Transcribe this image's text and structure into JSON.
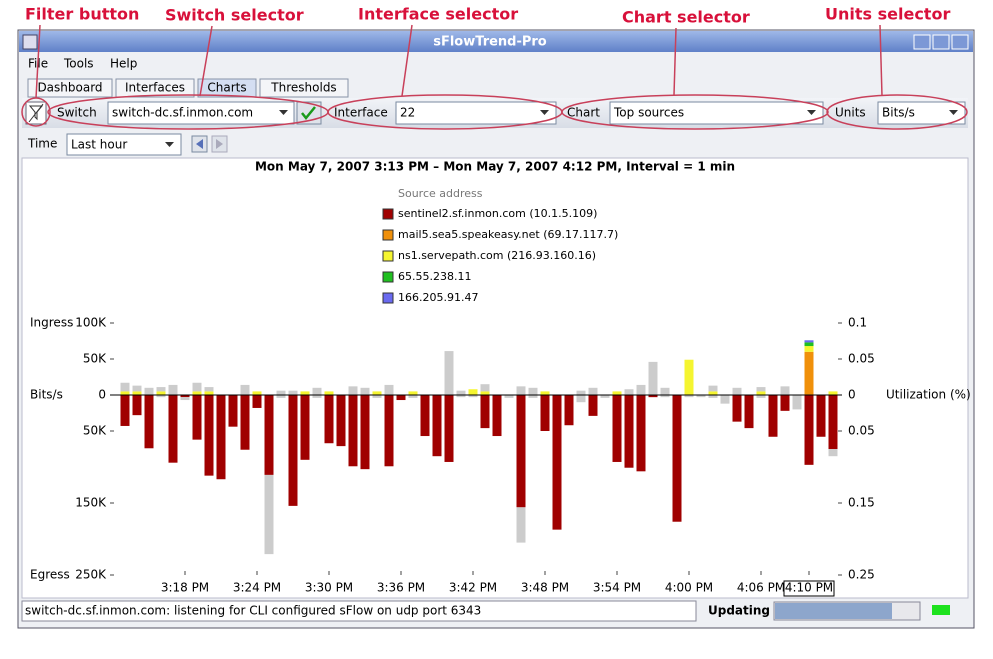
{
  "annotations": [
    "Filter button",
    "Switch selector",
    "Interface selector",
    "Chart selector",
    "Units selector"
  ],
  "window": {
    "title": "sFlowTrend-Pro"
  },
  "menu": [
    "File",
    "Tools",
    "Help"
  ],
  "tabs": [
    "Dashboard",
    "Interfaces",
    "Charts",
    "Thresholds"
  ],
  "toolbar": {
    "switch_label": "Switch",
    "switch_value": "switch-dc.sf.inmon.com",
    "interface_label": "Interface",
    "interface_value": "22",
    "chart_label": "Chart",
    "chart_value": "Top sources",
    "units_label": "Units",
    "units_value": "Bits/s",
    "time_label": "Time",
    "time_value": "Last hour"
  },
  "chart": {
    "type": "bar",
    "title": "Mon May 7, 2007 3:13 PM – Mon May 7, 2007 4:12 PM, Interval = 1 min",
    "legend_title": "Source address",
    "y_label_top": "Ingress",
    "y_label_middle": "Bits/s",
    "y_label_bottom": "Egress",
    "y2_label": "Utilization (%)",
    "ylim": [
      -250000,
      100000
    ],
    "yticks": [
      {
        "value": 100000,
        "label": "100K"
      },
      {
        "value": 50000,
        "label": "50K"
      },
      0,
      {
        "value": -50000,
        "label": "50K"
      },
      {
        "value": -150000,
        "label": "150K"
      },
      {
        "value": -250000,
        "label": "250K"
      }
    ],
    "y2lim": [
      -0.25,
      0.1
    ],
    "y2ticks": [
      0.1,
      0.05,
      0,
      {
        "value": -0.05,
        "label": "0.05"
      },
      {
        "value": -0.15,
        "label": "0.15"
      },
      {
        "value": -0.25,
        "label": "0.25"
      }
    ],
    "categories": [
      null,
      null,
      null,
      null,
      null,
      "3:18 PM",
      null,
      null,
      null,
      null,
      null,
      "3:24 PM",
      null,
      null,
      null,
      null,
      null,
      "3:30 PM",
      null,
      null,
      null,
      null,
      null,
      "3:36 PM",
      null,
      null,
      null,
      null,
      null,
      "3:42 PM",
      null,
      null,
      null,
      null,
      null,
      "3:48 PM",
      null,
      null,
      null,
      null,
      null,
      "3:54 PM",
      null,
      null,
      null,
      null,
      null,
      "4:00 PM",
      null,
      null,
      null,
      null,
      null,
      "4:06 PM",
      null,
      null,
      null,
      "4:10 PM",
      null,
      null
    ],
    "series": [
      {
        "name": "sentinel2.sf.inmon.com (10.1.5.109)",
        "color": "#a00000",
        "egress_values": [
          -43000,
          -28000,
          -74000,
          0,
          -94000,
          -3000,
          -62000,
          -112000,
          -117000,
          -44000,
          -76000,
          -18000,
          -111000,
          0,
          -154000,
          -90000,
          0,
          -67000,
          -71000,
          -99000,
          -103000,
          0,
          -99000,
          -7000,
          0,
          -57000,
          -85000,
          -93000,
          0,
          0,
          -46000,
          -57000,
          0,
          -156000,
          0,
          -50000,
          -187000,
          -42000,
          0,
          -29000,
          0,
          -93000,
          -101000,
          -106000,
          -3000,
          0,
          -176000,
          0,
          0,
          0,
          0,
          -37000,
          -46000,
          0,
          -58000,
          -22000,
          0,
          -97000,
          -58000,
          -75000
        ]
      },
      {
        "name": "mail5.sea5.speakeasy.net (69.17.117.7)",
        "color": "#f0900a",
        "values": [
          0,
          0,
          0,
          0,
          0,
          0,
          0,
          0,
          0,
          0,
          0,
          0,
          0,
          0,
          0,
          0,
          0,
          0,
          0,
          0,
          0,
          0,
          0,
          0,
          0,
          0,
          0,
          0,
          0,
          0,
          0,
          0,
          0,
          0,
          0,
          0,
          0,
          0,
          0,
          0,
          0,
          0,
          0,
          0,
          0,
          0,
          0,
          0,
          0,
          0,
          0,
          0,
          0,
          0,
          0,
          0,
          0,
          60000,
          0,
          0
        ]
      },
      {
        "name": "ns1.servepath.com (216.93.160.16)",
        "color": "#f5f530",
        "values": [
          5000,
          5000,
          0,
          5000,
          0,
          0,
          5000,
          5000,
          0,
          0,
          0,
          5000,
          0,
          0,
          0,
          5000,
          0,
          5000,
          0,
          0,
          0,
          5000,
          0,
          0,
          5000,
          0,
          0,
          0,
          0,
          8000,
          5000,
          0,
          0,
          0,
          0,
          5000,
          0,
          0,
          0,
          0,
          0,
          5000,
          0,
          0,
          0,
          0,
          0,
          49000,
          0,
          5000,
          0,
          0,
          0,
          5000,
          0,
          0,
          0,
          8000,
          0,
          5000
        ]
      },
      {
        "name": "65.55.238.11",
        "color": "#20c020",
        "values": [
          0,
          0,
          0,
          0,
          0,
          0,
          0,
          0,
          0,
          0,
          0,
          0,
          0,
          0,
          0,
          0,
          0,
          0,
          0,
          0,
          0,
          0,
          0,
          0,
          0,
          0,
          0,
          0,
          0,
          0,
          0,
          0,
          0,
          0,
          0,
          0,
          0,
          0,
          0,
          0,
          0,
          0,
          0,
          0,
          0,
          0,
          0,
          0,
          0,
          0,
          0,
          0,
          0,
          0,
          0,
          0,
          0,
          5000,
          0,
          0
        ]
      },
      {
        "name": "166.205.91.47",
        "color": "#6a6af0",
        "values": [
          0,
          0,
          0,
          0,
          0,
          0,
          0,
          0,
          0,
          0,
          0,
          0,
          0,
          0,
          0,
          0,
          0,
          0,
          0,
          0,
          0,
          0,
          0,
          0,
          0,
          0,
          0,
          0,
          0,
          0,
          0,
          0,
          0,
          0,
          0,
          0,
          0,
          0,
          0,
          0,
          0,
          0,
          0,
          0,
          0,
          0,
          0,
          0,
          0,
          0,
          0,
          0,
          0,
          0,
          0,
          0,
          0,
          3000,
          0,
          0
        ]
      },
      {
        "color": "#cccccc",
        "values": [
          12000,
          8000,
          10000,
          6000,
          14000,
          0,
          12000,
          6000,
          0,
          0,
          14000,
          0,
          0,
          6000,
          6000,
          0,
          10000,
          0,
          0,
          12000,
          10000,
          0,
          14000,
          0,
          0,
          0,
          0,
          61000,
          6000,
          0,
          10000,
          0,
          0,
          12000,
          10000,
          0,
          0,
          0,
          6000,
          10000,
          0,
          0,
          8000,
          14000,
          46000,
          10000,
          0,
          0,
          0,
          8000,
          0,
          10000,
          0,
          6000,
          0,
          12000,
          0,
          0,
          0,
          0
        ],
        "egress_values": [
          0,
          0,
          0,
          -3000,
          0,
          -4000,
          0,
          0,
          0,
          0,
          0,
          0,
          -110000,
          -4000,
          0,
          0,
          -4000,
          0,
          0,
          0,
          0,
          -4000,
          0,
          0,
          -4000,
          0,
          0,
          0,
          -3000,
          -3000,
          0,
          0,
          -4000,
          -49000,
          -4000,
          0,
          0,
          0,
          -10000,
          0,
          -4000,
          0,
          0,
          0,
          0,
          -3000,
          0,
          -3000,
          -3000,
          -4000,
          -12000,
          0,
          0,
          -4000,
          0,
          0,
          -20000,
          0,
          0,
          -10000
        ]
      }
    ]
  },
  "status": {
    "message": "switch-dc.sf.inmon.com: listening for CLI configured sFlow on udp port 6343",
    "updating": "Updating"
  }
}
